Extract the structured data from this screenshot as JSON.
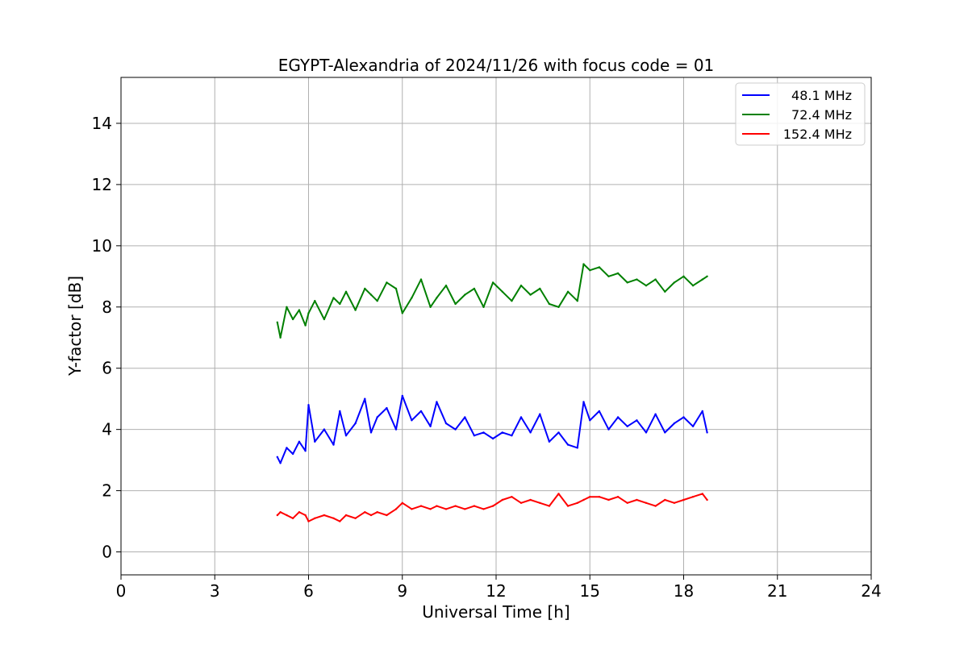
{
  "chart_data": {
    "type": "line",
    "title": "EGYPT-Alexandria of 2024/11/26 with focus code = 01",
    "xlabel": "Universal Time [h]",
    "ylabel": "Y-factor [dB]",
    "xlim": [
      0,
      24
    ],
    "ylim": [
      -0.75,
      15.5
    ],
    "xticks": [
      0,
      3,
      6,
      9,
      12,
      15,
      18,
      21,
      24
    ],
    "yticks": [
      0,
      2,
      4,
      6,
      8,
      10,
      12,
      14
    ],
    "grid": true,
    "legend_position": "top-right",
    "series": [
      {
        "name": "48.1 MHz",
        "color": "#0000ff",
        "x": [
          5.0,
          5.1,
          5.3,
          5.5,
          5.7,
          5.9,
          6.0,
          6.2,
          6.5,
          6.8,
          7.0,
          7.2,
          7.5,
          7.8,
          8.0,
          8.2,
          8.5,
          8.8,
          9.0,
          9.3,
          9.6,
          9.9,
          10.1,
          10.4,
          10.7,
          11.0,
          11.3,
          11.6,
          11.9,
          12.2,
          12.5,
          12.8,
          13.1,
          13.4,
          13.7,
          14.0,
          14.3,
          14.6,
          14.8,
          15.0,
          15.3,
          15.6,
          15.9,
          16.2,
          16.5,
          16.8,
          17.1,
          17.4,
          17.7,
          18.0,
          18.3,
          18.6,
          18.75
        ],
        "values": [
          3.1,
          2.9,
          3.4,
          3.2,
          3.6,
          3.3,
          4.8,
          3.6,
          4.0,
          3.5,
          4.6,
          3.8,
          4.2,
          5.0,
          3.9,
          4.4,
          4.7,
          4.0,
          5.1,
          4.3,
          4.6,
          4.1,
          4.9,
          4.2,
          4.0,
          4.4,
          3.8,
          3.9,
          3.7,
          3.9,
          3.8,
          4.4,
          3.9,
          4.5,
          3.6,
          3.9,
          3.5,
          3.4,
          4.9,
          4.3,
          4.6,
          4.0,
          4.4,
          4.1,
          4.3,
          3.9,
          4.5,
          3.9,
          4.2,
          4.4,
          4.1,
          4.6,
          3.9
        ]
      },
      {
        "name": "72.4 MHz",
        "color": "#008000",
        "x": [
          5.0,
          5.1,
          5.3,
          5.5,
          5.7,
          5.9,
          6.0,
          6.2,
          6.5,
          6.8,
          7.0,
          7.2,
          7.5,
          7.8,
          8.0,
          8.2,
          8.5,
          8.8,
          9.0,
          9.3,
          9.6,
          9.9,
          10.1,
          10.4,
          10.7,
          11.0,
          11.3,
          11.6,
          11.9,
          12.2,
          12.5,
          12.8,
          13.1,
          13.4,
          13.7,
          14.0,
          14.3,
          14.6,
          14.8,
          15.0,
          15.3,
          15.6,
          15.9,
          16.2,
          16.5,
          16.8,
          17.1,
          17.4,
          17.7,
          18.0,
          18.3,
          18.6,
          18.75
        ],
        "values": [
          7.5,
          7.0,
          8.0,
          7.6,
          7.9,
          7.4,
          7.8,
          8.2,
          7.6,
          8.3,
          8.1,
          8.5,
          7.9,
          8.6,
          8.4,
          8.2,
          8.8,
          8.6,
          7.8,
          8.3,
          8.9,
          8.0,
          8.3,
          8.7,
          8.1,
          8.4,
          8.6,
          8.0,
          8.8,
          8.5,
          8.2,
          8.7,
          8.4,
          8.6,
          8.1,
          8.0,
          8.5,
          8.2,
          9.4,
          9.2,
          9.3,
          9.0,
          9.1,
          8.8,
          8.9,
          8.7,
          8.9,
          8.5,
          8.8,
          9.0,
          8.7,
          8.9,
          9.0
        ]
      },
      {
        "name": "152.4 MHz",
        "color": "#ff0000",
        "x": [
          5.0,
          5.1,
          5.3,
          5.5,
          5.7,
          5.9,
          6.0,
          6.2,
          6.5,
          6.8,
          7.0,
          7.2,
          7.5,
          7.8,
          8.0,
          8.2,
          8.5,
          8.8,
          9.0,
          9.3,
          9.6,
          9.9,
          10.1,
          10.4,
          10.7,
          11.0,
          11.3,
          11.6,
          11.9,
          12.2,
          12.5,
          12.8,
          13.1,
          13.4,
          13.7,
          14.0,
          14.3,
          14.6,
          14.8,
          15.0,
          15.3,
          15.6,
          15.9,
          16.2,
          16.5,
          16.8,
          17.1,
          17.4,
          17.7,
          18.0,
          18.3,
          18.6,
          18.75
        ],
        "values": [
          1.2,
          1.3,
          1.2,
          1.1,
          1.3,
          1.2,
          1.0,
          1.1,
          1.2,
          1.1,
          1.0,
          1.2,
          1.1,
          1.3,
          1.2,
          1.3,
          1.2,
          1.4,
          1.6,
          1.4,
          1.5,
          1.4,
          1.5,
          1.4,
          1.5,
          1.4,
          1.5,
          1.4,
          1.5,
          1.7,
          1.8,
          1.6,
          1.7,
          1.6,
          1.5,
          1.9,
          1.5,
          1.6,
          1.7,
          1.8,
          1.8,
          1.7,
          1.8,
          1.6,
          1.7,
          1.6,
          1.5,
          1.7,
          1.6,
          1.7,
          1.8,
          1.9,
          1.7
        ]
      }
    ]
  }
}
